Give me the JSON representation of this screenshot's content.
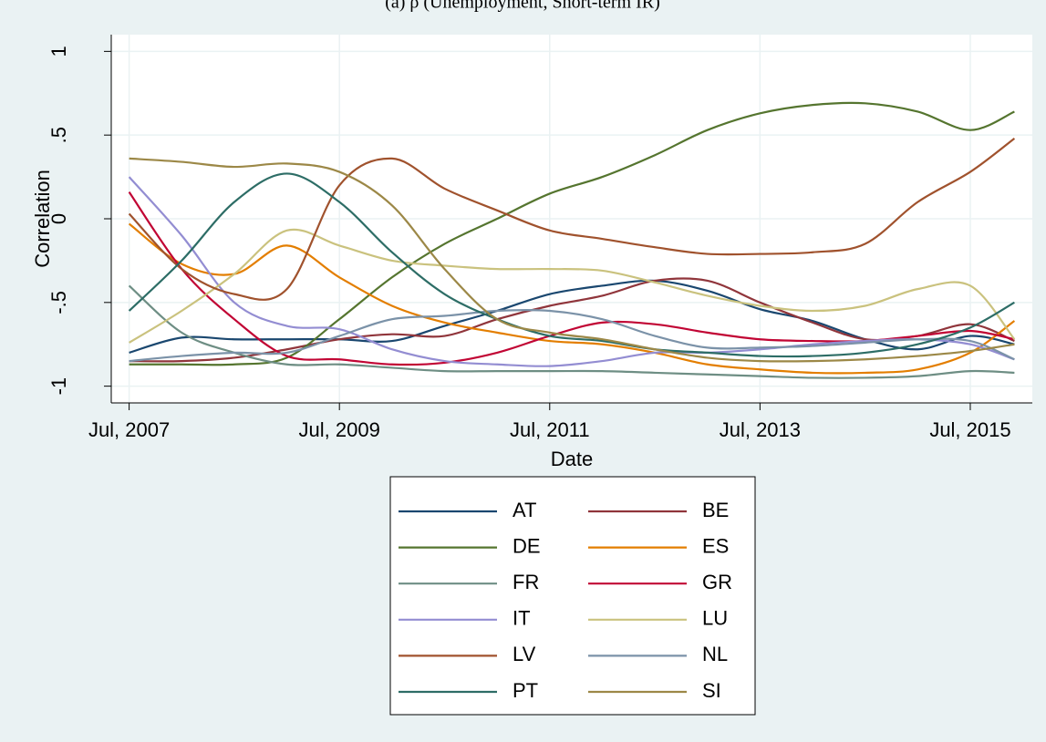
{
  "chart_data": {
    "type": "line",
    "title": "(a) ρ (Unemployment, Short-term IR)",
    "xlabel": "Date",
    "ylabel": "Correlation",
    "x": [
      2007.5,
      2008,
      2008.5,
      2009,
      2009.5,
      2010,
      2010.5,
      2011,
      2011.5,
      2012,
      2012.5,
      2013,
      2013.5,
      2014,
      2014.5,
      2015,
      2015.5,
      2015.92
    ],
    "xlim": [
      2007.33,
      2016.09
    ],
    "xticks": [
      {
        "value": 2007.5,
        "label": "Jul, 2007"
      },
      {
        "value": 2009.5,
        "label": "Jul, 2009"
      },
      {
        "value": 2011.5,
        "label": "Jul, 2011"
      },
      {
        "value": 2013.5,
        "label": "Jul, 2013"
      },
      {
        "value": 2015.5,
        "label": "Jul, 2015"
      }
    ],
    "ylim": [
      -1.1,
      1.1
    ],
    "yticks": [
      1,
      {
        "value": 0.5,
        "label": ".5"
      },
      0,
      {
        "value": -0.5,
        "label": "-.5"
      },
      -1
    ],
    "grid": true,
    "series": [
      {
        "name": "AT",
        "color": "#1a476f",
        "values": [
          -0.8,
          -0.71,
          -0.72,
          -0.72,
          -0.72,
          -0.73,
          -0.64,
          -0.55,
          -0.45,
          -0.4,
          -0.37,
          -0.43,
          -0.54,
          -0.61,
          -0.72,
          -0.78,
          -0.7,
          -0.75
        ]
      },
      {
        "name": "BE",
        "color": "#90353b",
        "values": [
          -0.85,
          -0.85,
          -0.83,
          -0.78,
          -0.72,
          -0.69,
          -0.7,
          -0.6,
          -0.52,
          -0.46,
          -0.37,
          -0.37,
          -0.5,
          -0.62,
          -0.72,
          -0.7,
          -0.63,
          -0.73
        ]
      },
      {
        "name": "DE",
        "color": "#55752f",
        "values": [
          -0.87,
          -0.87,
          -0.87,
          -0.83,
          -0.6,
          -0.35,
          -0.15,
          0.0,
          0.15,
          0.25,
          0.38,
          0.53,
          0.63,
          0.68,
          0.69,
          0.64,
          0.53,
          0.64
        ]
      },
      {
        "name": "ES",
        "color": "#e37e00",
        "values": [
          -0.03,
          -0.27,
          -0.33,
          -0.16,
          -0.35,
          -0.52,
          -0.62,
          -0.68,
          -0.73,
          -0.75,
          -0.8,
          -0.87,
          -0.9,
          -0.92,
          -0.92,
          -0.9,
          -0.8,
          -0.61
        ]
      },
      {
        "name": "FR",
        "color": "#6e8e84",
        "values": [
          -0.4,
          -0.68,
          -0.8,
          -0.87,
          -0.87,
          -0.89,
          -0.91,
          -0.91,
          -0.91,
          -0.91,
          -0.92,
          -0.93,
          -0.94,
          -0.95,
          -0.95,
          -0.94,
          -0.91,
          -0.92
        ]
      },
      {
        "name": "GR",
        "color": "#c10534",
        "values": [
          0.16,
          -0.3,
          -0.6,
          -0.82,
          -0.84,
          -0.87,
          -0.86,
          -0.8,
          -0.7,
          -0.62,
          -0.63,
          -0.68,
          -0.72,
          -0.73,
          -0.73,
          -0.7,
          -0.67,
          -0.72
        ]
      },
      {
        "name": "IT",
        "color": "#938dd2",
        "values": [
          0.25,
          -0.1,
          -0.5,
          -0.64,
          -0.66,
          -0.78,
          -0.85,
          -0.87,
          -0.88,
          -0.85,
          -0.8,
          -0.8,
          -0.78,
          -0.75,
          -0.73,
          -0.72,
          -0.75,
          -0.84
        ]
      },
      {
        "name": "LU",
        "color": "#cac27e",
        "values": [
          -0.74,
          -0.55,
          -0.33,
          -0.07,
          -0.16,
          -0.25,
          -0.28,
          -0.3,
          -0.3,
          -0.31,
          -0.38,
          -0.46,
          -0.52,
          -0.55,
          -0.52,
          -0.42,
          -0.4,
          -0.72
        ]
      },
      {
        "name": "LV",
        "color": "#a0522d",
        "values": [
          0.03,
          -0.3,
          -0.45,
          -0.42,
          0.2,
          0.36,
          0.18,
          0.05,
          -0.07,
          -0.12,
          -0.17,
          -0.21,
          -0.21,
          -0.2,
          -0.15,
          0.1,
          0.28,
          0.48
        ]
      },
      {
        "name": "NL",
        "color": "#7b92a8",
        "values": [
          -0.85,
          -0.82,
          -0.8,
          -0.8,
          -0.7,
          -0.6,
          -0.58,
          -0.55,
          -0.55,
          -0.6,
          -0.7,
          -0.77,
          -0.77,
          -0.76,
          -0.74,
          -0.72,
          -0.73,
          -0.84
        ]
      },
      {
        "name": "PT",
        "color": "#2d6d66",
        "values": [
          -0.55,
          -0.25,
          0.1,
          0.27,
          0.1,
          -0.2,
          -0.45,
          -0.6,
          -0.7,
          -0.73,
          -0.78,
          -0.8,
          -0.82,
          -0.82,
          -0.8,
          -0.75,
          -0.65,
          -0.5
        ]
      },
      {
        "name": "SI",
        "color": "#9c8847",
        "values": [
          0.36,
          0.34,
          0.31,
          0.33,
          0.28,
          0.08,
          -0.3,
          -0.6,
          -0.68,
          -0.72,
          -0.78,
          -0.83,
          -0.85,
          -0.85,
          -0.84,
          -0.82,
          -0.79,
          -0.75
        ]
      }
    ]
  }
}
